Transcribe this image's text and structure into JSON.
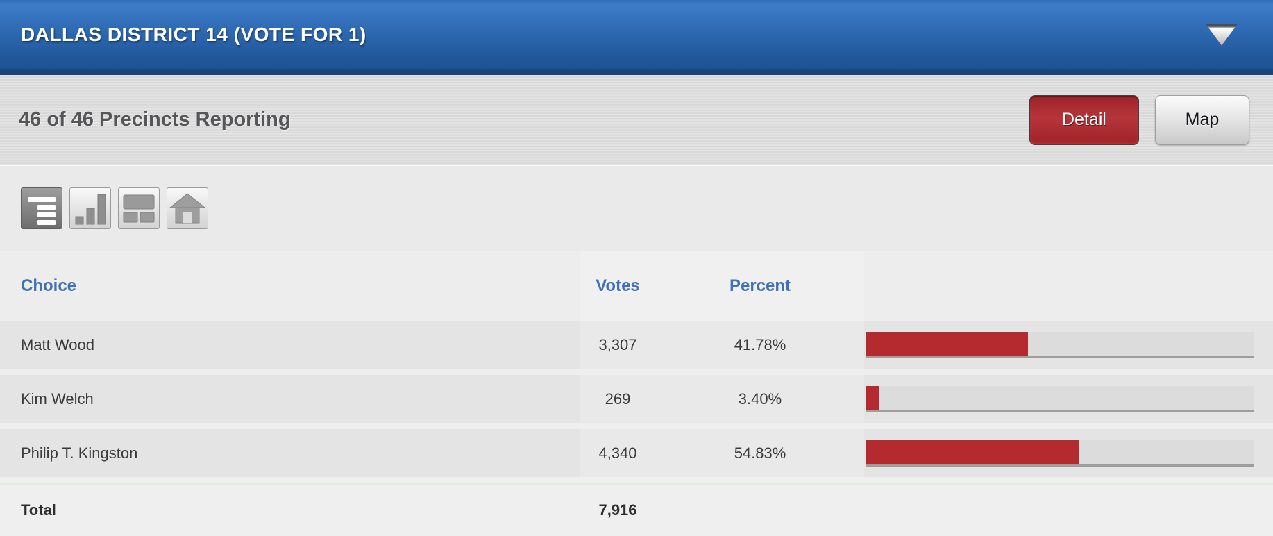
{
  "header": {
    "title": "DALLAS DISTRICT 14 (VOTE FOR 1)",
    "dropdown_icon": "triangle-down"
  },
  "subheader": {
    "precincts_status": "46 of 46 Precincts Reporting",
    "buttons": [
      {
        "label": "Detail",
        "active": true
      },
      {
        "label": "Map",
        "active": false
      }
    ]
  },
  "toolbar": {
    "views": [
      {
        "name": "summary-list-view",
        "icon": "list-view-icon",
        "selected": true
      },
      {
        "name": "bar-chart-view",
        "icon": "bar-chart-icon",
        "selected": false
      },
      {
        "name": "layout-view",
        "icon": "layout-icon",
        "selected": false
      },
      {
        "name": "home-view",
        "icon": "home-icon",
        "selected": false
      }
    ]
  },
  "results_table": {
    "columns": {
      "choice": "Choice",
      "votes": "Votes",
      "percent": "Percent"
    },
    "rows": [
      {
        "choice": "Matt Wood",
        "votes": "3,307",
        "percent": "41.78%",
        "percent_value": 41.78
      },
      {
        "choice": "Kim Welch",
        "votes": "269",
        "percent": "3.40%",
        "percent_value": 3.4
      },
      {
        "choice": "Philip T. Kingston",
        "votes": "4,340",
        "percent": "54.83%",
        "percent_value": 54.83
      }
    ],
    "total": {
      "label": "Total",
      "votes": "7,916"
    }
  },
  "colors": {
    "bar_red": "#b42a2e",
    "bar_track_gray": "#dcdcdc",
    "header_blue_top": "#3d7cc9",
    "header_blue_bottom": "#1d5191",
    "header_navy_strip": "#17457c",
    "column_header_blue": "#3e72b8",
    "detail_button_red": "#b5343a"
  }
}
